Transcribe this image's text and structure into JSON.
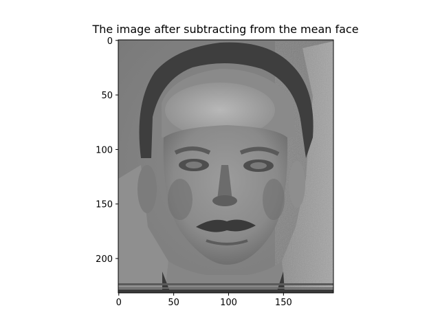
{
  "figure": {
    "title": "The image after subtracting from the mean face"
  },
  "image": {
    "description_icon": "grayscale-face-image-icon",
    "colormap": "gray"
  },
  "chart_data": {
    "type": "heatmap",
    "title": "The image after subtracting from the mean face",
    "xlabel": "",
    "ylabel": "",
    "xlim": [
      -0.5,
      195.5
    ],
    "ylim": [
      231.5,
      -0.5
    ],
    "x_ticks": [
      0,
      50,
      100,
      150
    ],
    "x_tick_labels": [
      "0",
      "50",
      "100",
      "150"
    ],
    "y_ticks": [
      0,
      50,
      100,
      150,
      200
    ],
    "y_tick_labels": [
      "0",
      "50",
      "100",
      "150",
      "200"
    ],
    "y_axis_inverted": true,
    "grid": false,
    "colormap": "gray"
  }
}
